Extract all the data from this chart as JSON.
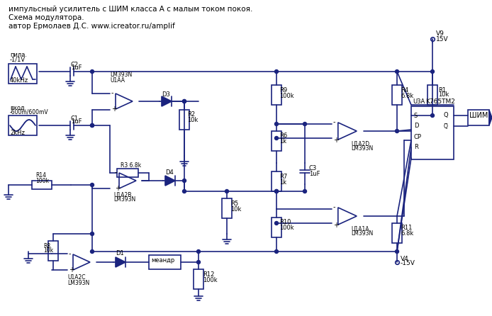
{
  "title_lines": [
    "импульсный усилитель с ШИМ класса А с малым током покоя.",
    "Схема модулятора.",
    "автор Ермолаев Д.С. www.icreator.ru/amplif"
  ],
  "bg_color": "#ffffff",
  "circuit_color": "#1a237e",
  "text_color": "#000000",
  "line_width": 1.2
}
